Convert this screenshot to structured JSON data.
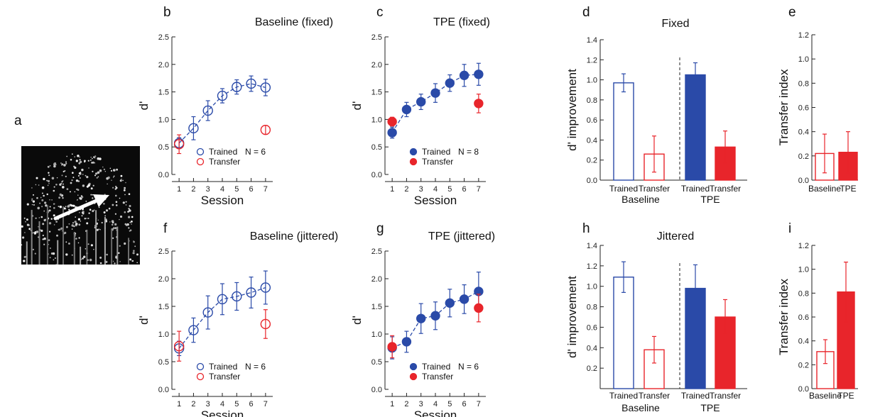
{
  "figure": {
    "panel_a_label": "a"
  },
  "colors": {
    "trained": "#2a4aa8",
    "transfer": "#e8252b",
    "axis": "#222222"
  },
  "chart_data": [
    {
      "id": "b",
      "panel_label": "b",
      "type": "scatter",
      "title": "Baseline (fixed)",
      "xlabel": "Session",
      "ylabel": "d'",
      "xlim": [
        0.5,
        7.5
      ],
      "ylim": [
        0,
        2.5
      ],
      "xticks": [
        1,
        2,
        3,
        4,
        5,
        6,
        7
      ],
      "yticks": [
        0.0,
        0.5,
        1.0,
        1.5,
        2.0,
        2.5
      ],
      "ytick_labels": [
        "0.0",
        "0.5",
        "1.0",
        "1.5",
        "2.0",
        "2.5"
      ],
      "marker_fill": "open",
      "n_label": "N = 6",
      "legend": [
        "Trained",
        "Transfer"
      ],
      "series": [
        {
          "name": "Trained",
          "x": [
            1,
            2,
            3,
            4,
            5,
            6,
            7
          ],
          "y": [
            0.57,
            0.84,
            1.16,
            1.43,
            1.59,
            1.65,
            1.58
          ],
          "err": [
            0.1,
            0.21,
            0.18,
            0.13,
            0.13,
            0.14,
            0.15
          ],
          "line": true
        },
        {
          "name": "Transfer",
          "x": [
            1,
            7
          ],
          "y": [
            0.55,
            0.81
          ],
          "err": [
            0.17,
            0.08
          ],
          "line": false
        }
      ]
    },
    {
      "id": "c",
      "panel_label": "c",
      "type": "scatter",
      "title": "TPE (fixed)",
      "xlabel": "Session",
      "ylabel": "d'",
      "xlim": [
        0.5,
        7.5
      ],
      "ylim": [
        0,
        2.5
      ],
      "xticks": [
        1,
        2,
        3,
        4,
        5,
        6,
        7
      ],
      "yticks": [
        0.0,
        0.5,
        1.0,
        1.5,
        2.0,
        2.5
      ],
      "ytick_labels": [
        "0.0",
        "0.5",
        "1.0",
        "1.5",
        "2.0",
        "2.5"
      ],
      "marker_fill": "filled",
      "n_label": "N = 8",
      "legend": [
        "Trained",
        "Transfer"
      ],
      "series": [
        {
          "name": "Trained",
          "x": [
            1,
            2,
            3,
            4,
            5,
            6,
            7
          ],
          "y": [
            0.76,
            1.18,
            1.32,
            1.48,
            1.66,
            1.8,
            1.82
          ],
          "err": [
            0.1,
            0.13,
            0.14,
            0.17,
            0.15,
            0.2,
            0.2
          ],
          "line": true
        },
        {
          "name": "Transfer",
          "x": [
            1,
            7
          ],
          "y": [
            0.96,
            1.29
          ],
          "err": [
            0.08,
            0.17
          ],
          "line": false
        }
      ]
    },
    {
      "id": "d",
      "panel_label": "d",
      "type": "bar",
      "title": "Fixed",
      "xlabel": "",
      "ylabel": "d' improvement",
      "ylim": [
        0,
        1.4
      ],
      "yticks": [
        0.0,
        0.2,
        0.4,
        0.6,
        0.8,
        1.0,
        1.2,
        1.4
      ],
      "ytick_labels": [
        "0.0",
        "0.2",
        "0.4",
        "0.6",
        "0.8",
        "1.0",
        "1.2",
        "1.4"
      ],
      "categories": [
        "Trained",
        "Transfer",
        "Trained",
        "Transfer"
      ],
      "groups": [
        "Baseline",
        "TPE"
      ],
      "values": [
        0.97,
        0.26,
        1.05,
        0.33
      ],
      "err": [
        0.09,
        0.18,
        0.12,
        0.16
      ],
      "bar_fill": [
        "open",
        "open",
        "filled",
        "filled"
      ],
      "bar_color": [
        "trained",
        "transfer",
        "trained",
        "transfer"
      ],
      "divider": true
    },
    {
      "id": "e",
      "panel_label": "e",
      "type": "bar",
      "title": "",
      "xlabel": "",
      "ylabel": "Transfer index",
      "ylim": [
        0,
        1.2
      ],
      "yticks": [
        0.0,
        0.2,
        0.4,
        0.6,
        0.8,
        1.0,
        1.2
      ],
      "ytick_labels": [
        "0.0",
        "0.2",
        "0.4",
        "0.6",
        "0.8",
        "1.0",
        "1.2"
      ],
      "categories": [
        "Baseline",
        "TPE"
      ],
      "values": [
        0.22,
        0.23
      ],
      "err": [
        0.16,
        0.17
      ],
      "bar_fill": [
        "open",
        "filled"
      ],
      "bar_color": [
        "transfer",
        "transfer"
      ]
    },
    {
      "id": "f",
      "panel_label": "f",
      "type": "scatter",
      "title": "Baseline (jittered)",
      "xlabel": "Session",
      "ylabel": "d'",
      "xlim": [
        0.5,
        7.5
      ],
      "ylim": [
        0,
        2.5
      ],
      "xticks": [
        1,
        2,
        3,
        4,
        5,
        6,
        7
      ],
      "yticks": [
        0.0,
        0.5,
        1.0,
        1.5,
        2.0,
        2.5
      ],
      "ytick_labels": [
        "0.0",
        "0.5",
        "1.0",
        "1.5",
        "2.0",
        "2.5"
      ],
      "marker_fill": "open",
      "n_label": "N = 6",
      "legend": [
        "Trained",
        "Transfer"
      ],
      "series": [
        {
          "name": "Trained",
          "x": [
            1,
            2,
            3,
            4,
            5,
            6,
            7
          ],
          "y": [
            0.74,
            1.07,
            1.39,
            1.63,
            1.68,
            1.75,
            1.84
          ],
          "err": [
            0.13,
            0.22,
            0.3,
            0.28,
            0.25,
            0.28,
            0.3
          ],
          "line": true
        },
        {
          "name": "Transfer",
          "x": [
            1,
            7
          ],
          "y": [
            0.78,
            1.18
          ],
          "err": [
            0.27,
            0.26
          ],
          "line": false
        }
      ]
    },
    {
      "id": "g",
      "panel_label": "g",
      "type": "scatter",
      "title": "TPE (jittered)",
      "xlabel": "Session",
      "ylabel": "d'",
      "xlim": [
        0.5,
        7.5
      ],
      "ylim": [
        0,
        2.5
      ],
      "xticks": [
        1,
        2,
        3,
        4,
        5,
        6,
        7
      ],
      "yticks": [
        0.0,
        0.5,
        1.0,
        1.5,
        2.0,
        2.5
      ],
      "ytick_labels": [
        "0.0",
        "0.5",
        "1.0",
        "1.5",
        "2.0",
        "2.5"
      ],
      "marker_fill": "filled",
      "n_label": "N = 6",
      "legend": [
        "Trained",
        "Transfer"
      ],
      "series": [
        {
          "name": "Trained",
          "x": [
            1,
            2,
            3,
            4,
            5,
            6,
            7
          ],
          "y": [
            0.75,
            0.86,
            1.28,
            1.33,
            1.56,
            1.63,
            1.77
          ],
          "err": [
            0.2,
            0.19,
            0.27,
            0.25,
            0.25,
            0.26,
            0.35
          ],
          "line": true
        },
        {
          "name": "Transfer",
          "x": [
            1,
            7
          ],
          "y": [
            0.77,
            1.47
          ],
          "err": [
            0.2,
            0.25
          ],
          "line": false
        }
      ]
    },
    {
      "id": "h",
      "panel_label": "h",
      "type": "bar",
      "title": "Jittered",
      "xlabel": "",
      "ylabel": "d' improvement",
      "ylim": [
        0,
        1.4
      ],
      "yticks": [
        0.2,
        0.4,
        0.6,
        0.8,
        1.0,
        1.2,
        1.4
      ],
      "ytick_labels": [
        "0.2",
        "0.4",
        "0.6",
        "0.8",
        "1.0",
        "1.2",
        "1.4"
      ],
      "categories": [
        "Trained",
        "Transfer",
        "Trained",
        "Transfer"
      ],
      "groups": [
        "Baseline",
        "TPE"
      ],
      "values": [
        1.09,
        0.38,
        0.98,
        0.7
      ],
      "err": [
        0.15,
        0.13,
        0.23,
        0.17
      ],
      "bar_fill": [
        "open",
        "open",
        "filled",
        "filled"
      ],
      "bar_color": [
        "trained",
        "transfer",
        "trained",
        "transfer"
      ],
      "divider": true
    },
    {
      "id": "i",
      "panel_label": "i",
      "type": "bar",
      "title": "",
      "xlabel": "",
      "ylabel": "Transfer index",
      "ylim": [
        0,
        1.2
      ],
      "yticks": [
        0.0,
        0.2,
        0.4,
        0.6,
        0.8,
        1.0,
        1.2
      ],
      "ytick_labels": [
        "0.0",
        "0.2",
        "0.4",
        "0.6",
        "0.8",
        "1.0",
        "1.2"
      ],
      "categories": [
        "Baseline",
        "TPE"
      ],
      "values": [
        0.31,
        0.81
      ],
      "err": [
        0.1,
        0.25
      ],
      "bar_fill": [
        "open",
        "filled"
      ],
      "bar_color": [
        "transfer",
        "transfer"
      ]
    }
  ]
}
